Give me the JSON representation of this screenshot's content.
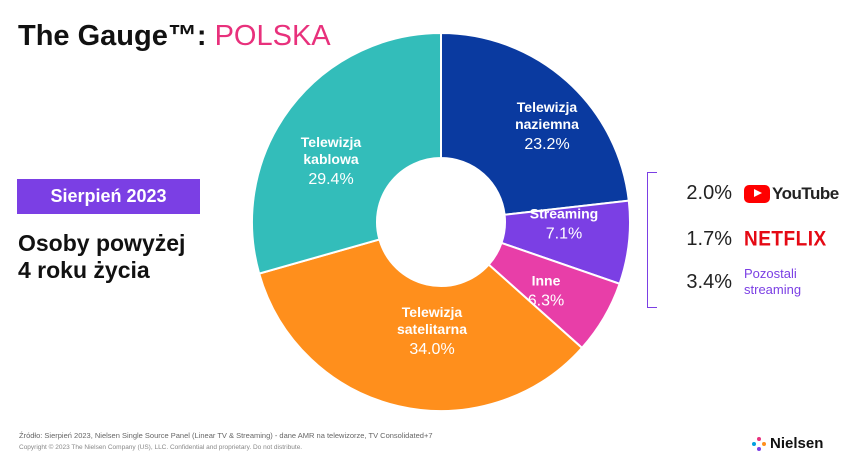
{
  "header": {
    "title_prefix": "The Gauge™: ",
    "title_highlight": "POLSKA"
  },
  "badge": {
    "label": "Sierpień 2023"
  },
  "audience": {
    "line1": "Osoby powyżej",
    "line2": "4 roku życia"
  },
  "colors": {
    "accent_purple": "#7b3fe4",
    "highlight_pink": "#e8317c"
  },
  "chart_data": {
    "type": "pie",
    "donut": true,
    "slices": [
      {
        "label_lines": [
          "Telewizja",
          "naziemna"
        ],
        "value": 23.2,
        "value_label": "23.2%",
        "color": "#0a3aa0"
      },
      {
        "label_lines": [
          "Streaming"
        ],
        "value": 7.1,
        "value_label": "7.1%",
        "color": "#7b3fe4"
      },
      {
        "label_lines": [
          "Inne"
        ],
        "value": 6.3,
        "value_label": "6.3%",
        "color": "#e83ea8"
      },
      {
        "label_lines": [
          "Telewizja",
          "satelitarna"
        ],
        "value": 34.0,
        "value_label": "34.0%",
        "color": "#ff8f1c"
      },
      {
        "label_lines": [
          "Telewizja",
          "kablowa"
        ],
        "value": 29.4,
        "value_label": "29.4%",
        "color": "#33bdba"
      }
    ],
    "streaming_breakdown": [
      {
        "value": 2.0,
        "value_label": "2.0%",
        "service": "YouTube",
        "icon": "youtube-logo"
      },
      {
        "value": 1.7,
        "value_label": "1.7%",
        "service": "NETFLIX",
        "icon": "netflix-logo"
      },
      {
        "value": 3.4,
        "value_label": "3.4%",
        "service_lines": [
          "Pozostali",
          "streaming"
        ]
      }
    ]
  },
  "footer": {
    "source": "Źródło: Sierpień  2023, Nielsen Single Source Panel (Linear TV & Streaming) - dane AMR na telewizorze, TV Consolidated+7",
    "copyright": "Copyright © 2023 The Nielsen Company (US), LLC. Confidential and proprietary. Do not distribute.",
    "brand": "Nielsen"
  }
}
